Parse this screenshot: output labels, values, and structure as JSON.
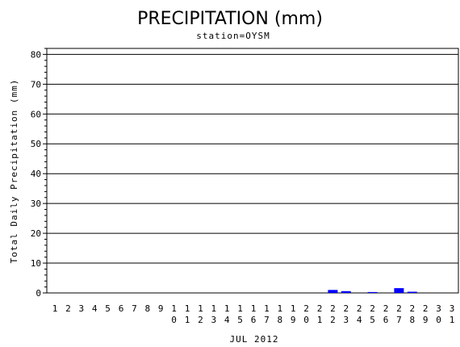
{
  "chart_data": {
    "type": "bar",
    "title": "PRECIPITATION (mm)",
    "subtitle": "station=OYSM",
    "xlabel": "JUL 2012",
    "ylabel": "Total Daily Precipitation (mm)",
    "ylim": [
      0,
      82
    ],
    "yticks": [
      "0",
      "10",
      "20",
      "30",
      "40",
      "50",
      "60",
      "70",
      "80"
    ],
    "grid": "horizontal",
    "categories": [
      "1",
      "2",
      "3",
      "4",
      "5",
      "6",
      "7",
      "8",
      "9",
      "10",
      "11",
      "12",
      "13",
      "14",
      "15",
      "16",
      "17",
      "18",
      "19",
      "20",
      "21",
      "22",
      "23",
      "24",
      "25",
      "26",
      "27",
      "28",
      "29",
      "30",
      "31"
    ],
    "values": [
      0,
      0,
      0,
      0,
      0,
      0,
      0,
      0,
      0,
      0,
      0,
      0,
      0,
      0,
      0,
      0,
      0,
      0,
      0,
      0,
      0,
      1.0,
      0.6,
      0,
      0.3,
      0,
      1.6,
      0.4,
      0,
      0,
      0
    ],
    "bar_color": "#0000ff"
  }
}
